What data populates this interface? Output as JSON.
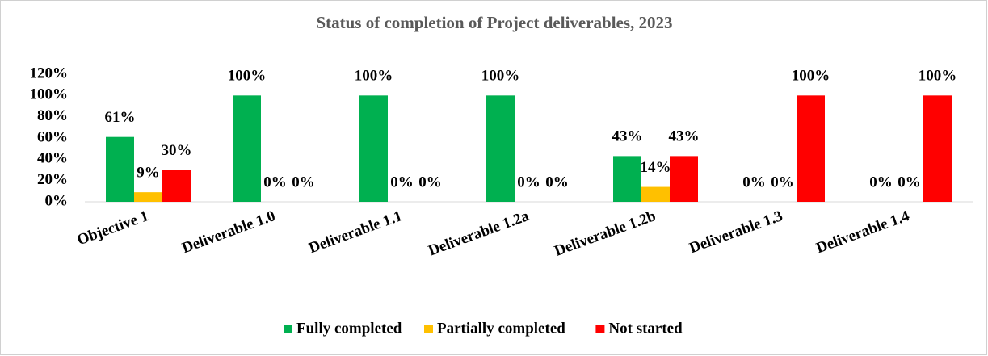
{
  "chart_data": {
    "type": "bar",
    "title": "Status of completion of Project deliverables,  2023",
    "categories": [
      "Objective 1",
      "Deliverable 1.0",
      "Deliverable 1.1",
      "Deliverable 1.2a",
      "Deliverable 1.2b",
      "Deliverable 1.3",
      "Deliverable 1.4"
    ],
    "series": [
      {
        "name": "Fully completed",
        "color": "#00b050",
        "values": [
          61,
          100,
          100,
          100,
          43,
          0,
          0
        ],
        "value_labels": [
          "61%",
          "100%",
          "100%",
          "100%",
          "43%",
          "0%",
          "0%"
        ]
      },
      {
        "name": "Partially completed",
        "color": "#ffc000",
        "values": [
          9,
          0,
          0,
          0,
          14,
          0,
          0
        ],
        "value_labels": [
          "9%",
          "0%",
          "0%",
          "0%",
          "14%",
          "0%",
          "0%"
        ]
      },
      {
        "name": "Not started",
        "color": "#ff0000",
        "values": [
          30,
          0,
          0,
          0,
          43,
          100,
          100
        ],
        "value_labels": [
          "30%",
          "0%",
          "0%",
          "0%",
          "43%",
          "100%",
          "100%"
        ]
      }
    ],
    "ylim": [
      0,
      120
    ],
    "yticks": [
      {
        "value": 0,
        "label": "0%"
      },
      {
        "value": 20,
        "label": "20%"
      },
      {
        "value": 40,
        "label": "40%"
      },
      {
        "value": 60,
        "label": "60%"
      },
      {
        "value": 80,
        "label": "80%"
      },
      {
        "value": 100,
        "label": "100%"
      },
      {
        "value": 120,
        "label": "120%"
      }
    ],
    "grid": false,
    "legend": "bottom"
  }
}
